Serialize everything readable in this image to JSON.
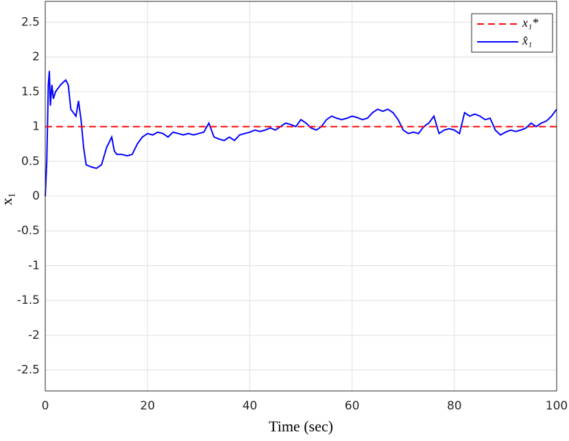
{
  "chart_data": {
    "type": "line",
    "xlabel": "Time (sec)",
    "ylabel": "x₁",
    "xlim": [
      0,
      100
    ],
    "xticks": [
      0,
      20,
      40,
      60,
      80,
      100
    ],
    "ylim": [
      -2.8,
      2.8
    ],
    "yticks": [
      -2.5,
      -2,
      -1.5,
      -1,
      -0.5,
      0,
      0.5,
      1,
      1.5,
      2,
      2.5
    ],
    "grid": true,
    "legend": "upper right",
    "series": [
      {
        "name": "x₁*",
        "color": "#ff0000",
        "dash": true,
        "x": [
          0,
          100
        ],
        "values": [
          1,
          1
        ]
      },
      {
        "name": "x̂₁",
        "color": "#0000ff",
        "dash": false,
        "x": [
          0,
          0.3,
          0.6,
          0.8,
          1,
          1.3,
          1.6,
          2,
          3,
          4,
          4.5,
          5,
          5.5,
          6,
          6.5,
          7,
          7.5,
          8,
          9,
          10,
          11,
          12,
          13,
          13.5,
          14,
          15,
          16,
          17,
          18,
          19,
          20,
          21,
          22,
          23,
          24,
          25,
          26,
          27,
          28,
          29,
          30,
          31,
          32,
          33,
          34,
          35,
          36,
          37,
          38,
          39,
          40,
          41,
          42,
          43,
          44,
          45,
          46,
          47,
          48,
          49,
          50,
          51,
          52,
          53,
          54,
          55,
          56,
          57,
          58,
          59,
          60,
          61,
          62,
          63,
          64,
          65,
          66,
          67,
          68,
          69,
          70,
          71,
          72,
          73,
          74,
          75,
          76,
          77,
          78,
          79,
          80,
          81,
          82,
          83,
          84,
          85,
          86,
          87,
          88,
          89,
          90,
          91,
          92,
          93,
          94,
          95,
          96,
          97,
          98,
          99,
          100
        ],
        "values": [
          0,
          0.5,
          1.6,
          1.8,
          1.3,
          1.6,
          1.4,
          1.5,
          1.6,
          1.67,
          1.6,
          1.25,
          1.2,
          1.15,
          1.37,
          1.1,
          0.7,
          0.45,
          0.42,
          0.4,
          0.45,
          0.7,
          0.85,
          0.65,
          0.6,
          0.6,
          0.58,
          0.6,
          0.75,
          0.85,
          0.9,
          0.88,
          0.92,
          0.9,
          0.85,
          0.92,
          0.9,
          0.88,
          0.9,
          0.88,
          0.9,
          0.92,
          1.05,
          0.85,
          0.82,
          0.8,
          0.85,
          0.8,
          0.88,
          0.9,
          0.92,
          0.95,
          0.93,
          0.95,
          0.98,
          0.95,
          1.0,
          1.05,
          1.03,
          1.0,
          1.1,
          1.05,
          0.98,
          0.95,
          1.0,
          1.1,
          1.15,
          1.12,
          1.1,
          1.12,
          1.15,
          1.13,
          1.1,
          1.12,
          1.2,
          1.25,
          1.22,
          1.25,
          1.2,
          1.1,
          0.95,
          0.9,
          0.92,
          0.9,
          1.0,
          1.05,
          1.15,
          0.9,
          0.95,
          0.97,
          0.95,
          0.9,
          1.2,
          1.15,
          1.18,
          1.15,
          1.1,
          1.12,
          0.95,
          0.88,
          0.92,
          0.95,
          0.93,
          0.95,
          0.98,
          1.05,
          1.0,
          1.05,
          1.08,
          1.15,
          1.25
        ]
      }
    ]
  }
}
